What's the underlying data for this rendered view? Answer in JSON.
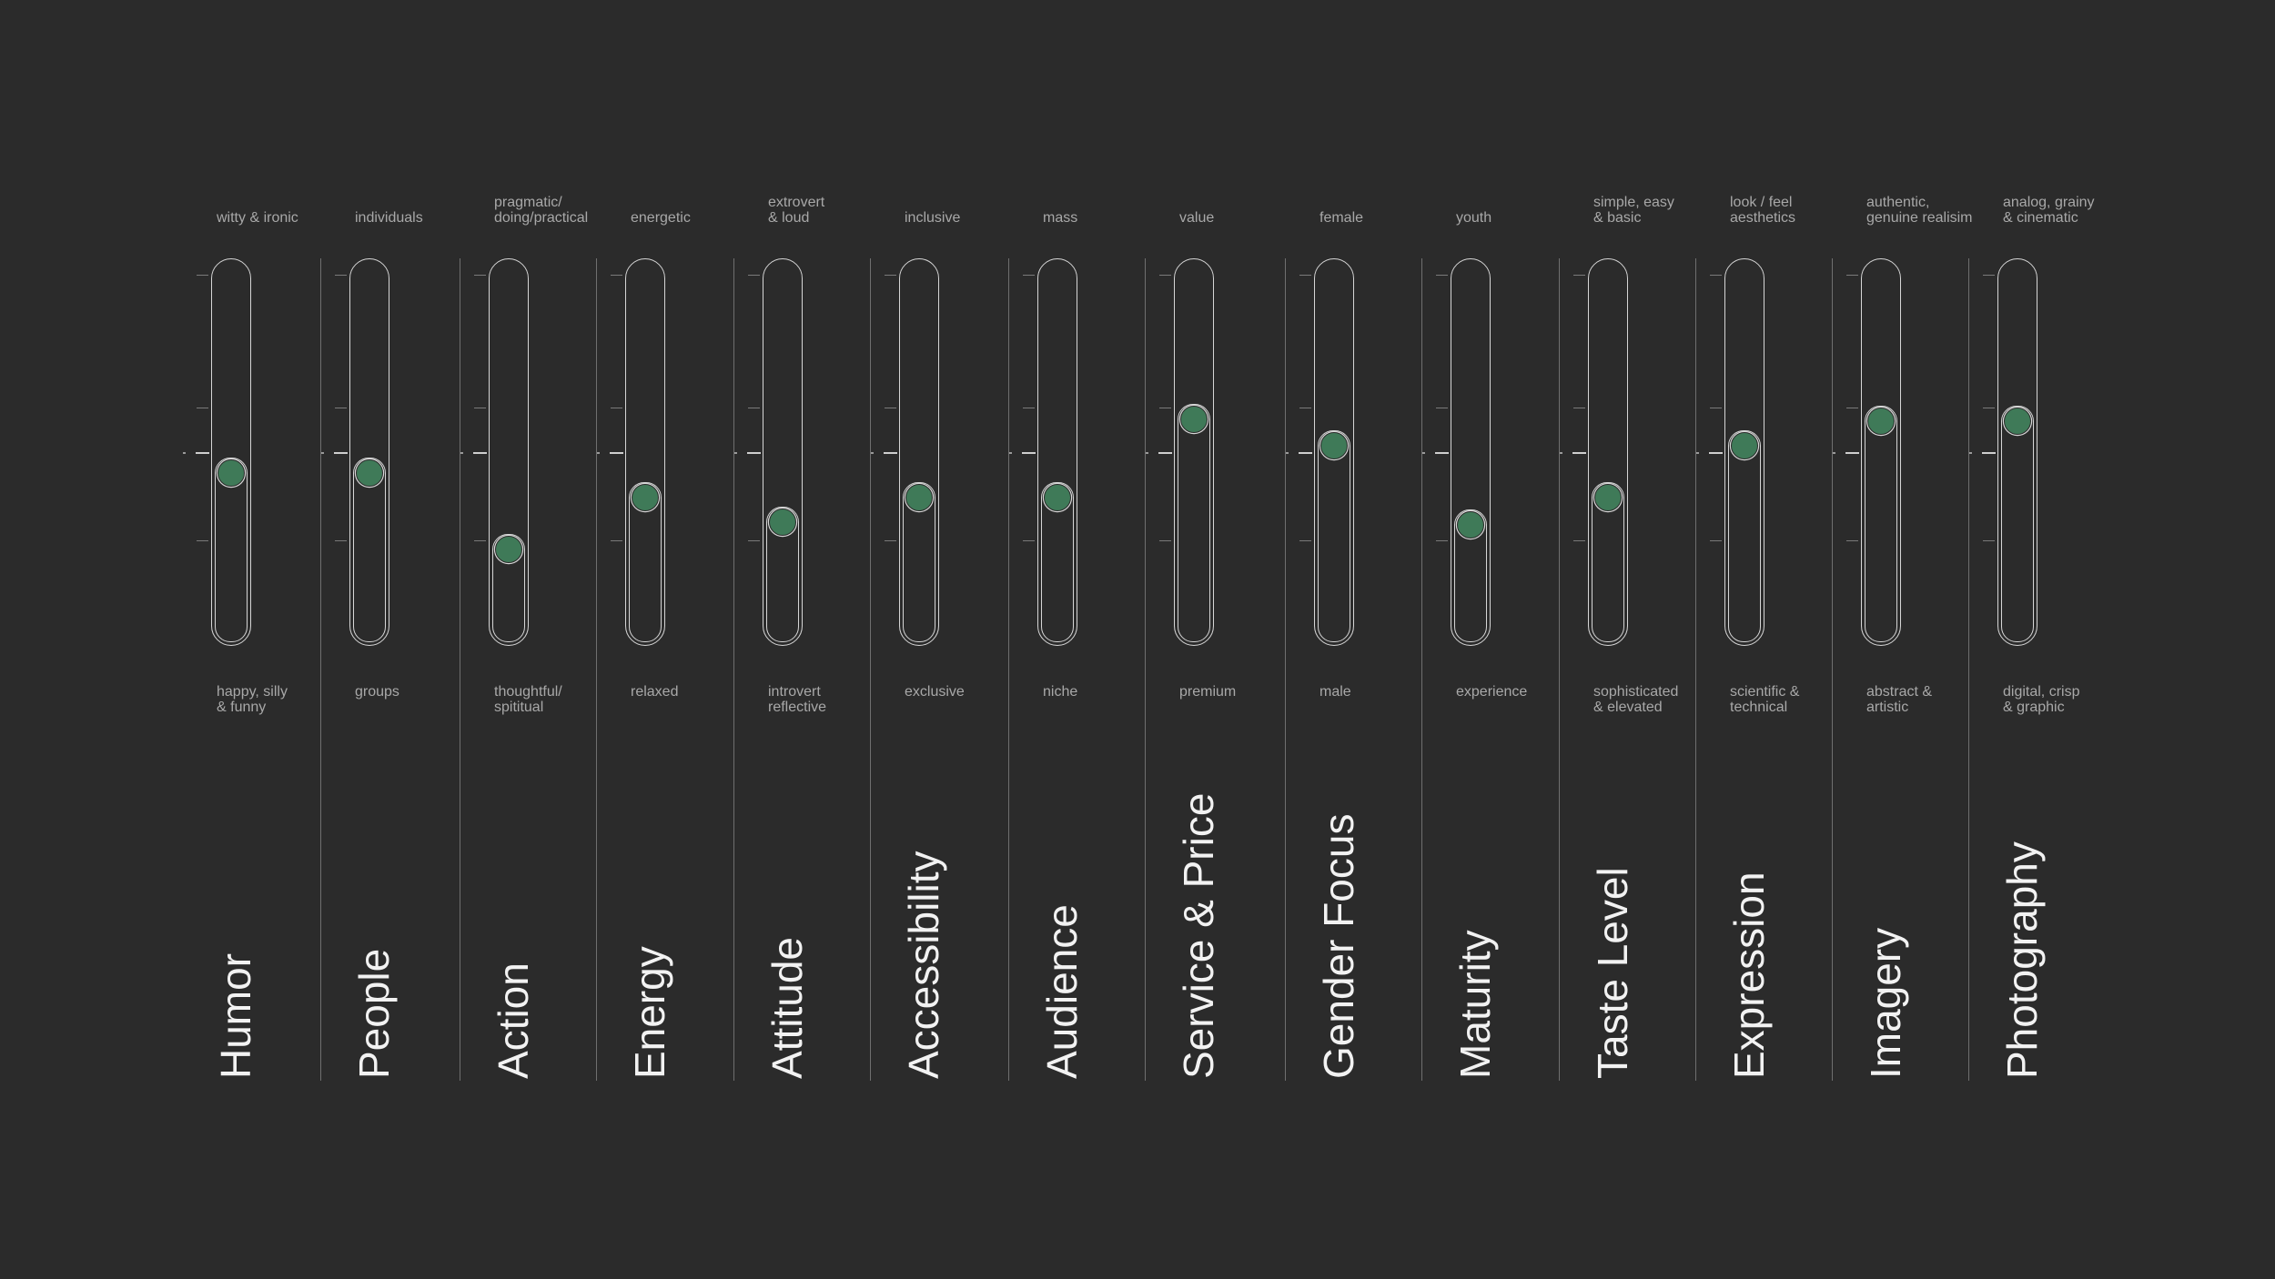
{
  "knob_color": "#3f7a58",
  "background_color": "#2b2b2b",
  "scales": [
    {
      "category": "Humor",
      "top": "witty & ironic",
      "bottom": "happy,  silly\n& funny",
      "level": 0.5
    },
    {
      "category": "People",
      "top": "individuals",
      "bottom": "groups",
      "level": 0.5
    },
    {
      "category": "Action",
      "top": "pragmatic/\ndoing/practical",
      "bottom": "thoughtful/\nspititual",
      "level": 0.16
    },
    {
      "category": "Energy",
      "top": "energetic",
      "bottom": "relaxed",
      "level": 0.39
    },
    {
      "category": "Attitude",
      "top": "extrovert\n& loud",
      "bottom": "introvert\nreflective",
      "level": 0.28
    },
    {
      "category": "Accessibility",
      "top": "inclusive",
      "bottom": "exclusive",
      "level": 0.39
    },
    {
      "category": "Audience",
      "top": "mass",
      "bottom": "niche",
      "level": 0.39
    },
    {
      "category": "Service & Price",
      "top": "value",
      "bottom": "premium",
      "level": 0.74
    },
    {
      "category": "Gender Focus",
      "top": "female",
      "bottom": "male",
      "level": 0.62
    },
    {
      "category": "Maturity",
      "top": "youth",
      "bottom": "experience",
      "level": 0.27
    },
    {
      "category": "Taste Level",
      "top": "simple, easy\n & basic",
      "bottom": "sophisticated\n& elevated",
      "level": 0.39
    },
    {
      "category": "Expression",
      "top": "look / feel\naesthetics",
      "bottom": "scientific &\ntechnical",
      "level": 0.62
    },
    {
      "category": "Imagery",
      "top": "authentic,\ngenuine realisim",
      "bottom": "abstract &\nartistic",
      "level": 0.73
    },
    {
      "category": "Photography",
      "top": "analog, grainy\n& cinematic",
      "bottom": "digital, crisp\n& graphic",
      "level": 0.73
    }
  ]
}
